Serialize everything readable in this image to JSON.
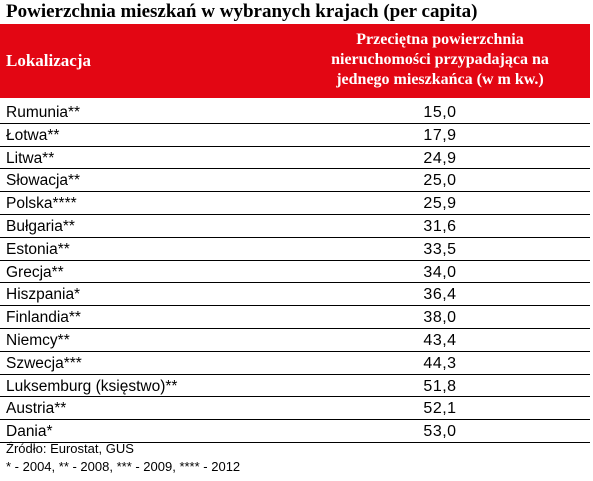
{
  "title": "Powierzchnia mieszkań w wybranych krajach (per capita)",
  "header": {
    "col1": "Lokalizacja",
    "col2_line1": "Przeciętna powierzchnia",
    "col2_line2": "nieruchomości przypadająca na",
    "col2_line3": "jednego mieszkańca (w m kw.)"
  },
  "colors": {
    "header_bg": "#e30613",
    "header_text": "#ffffff"
  },
  "chart_data": {
    "type": "table",
    "title": "Powierzchnia mieszkań w wybranych krajach (per capita)",
    "columns": [
      "Lokalizacja",
      "Przeciętna powierzchnia nieruchomości przypadająca na jednego mieszkańca (w m kw.)"
    ],
    "rows": [
      {
        "name": "Rumunia**",
        "value": "15,0"
      },
      {
        "name": "Łotwa**",
        "value": "17,9"
      },
      {
        "name": "Litwa**",
        "value": "24,9"
      },
      {
        "name": "Słowacja**",
        "value": "25,0"
      },
      {
        "name": "Polska****",
        "value": "25,9"
      },
      {
        "name": "Bułgaria**",
        "value": "31,6"
      },
      {
        "name": "Estonia**",
        "value": "33,5"
      },
      {
        "name": "Grecja**",
        "value": "34,0"
      },
      {
        "name": "Hiszpania*",
        "value": "36,4"
      },
      {
        "name": "Finlandia**",
        "value": "38,0"
      },
      {
        "name": "Niemcy**",
        "value": "43,4"
      },
      {
        "name": "Szwecja***",
        "value": "44,3"
      },
      {
        "name": "Luksemburg (księstwo)**",
        "value": "51,8"
      },
      {
        "name": "Austria**",
        "value": "52,1"
      },
      {
        "name": "Dania*",
        "value": "53,0"
      }
    ]
  },
  "source": "Źródło: Eurostat, GUS",
  "footnote": "* - 2004, ** - 2008, *** - 2009, **** - 2012"
}
